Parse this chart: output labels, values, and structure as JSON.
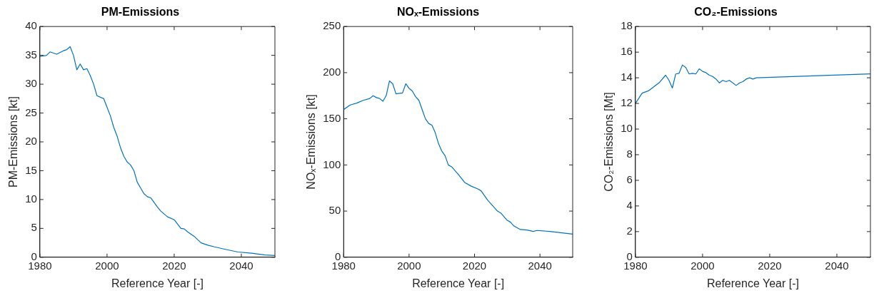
{
  "chart_data": [
    {
      "type": "line",
      "title": "PM-Emissions",
      "xlabel": "Reference Year [-]",
      "ylabel": "PM-Emissions [kt]",
      "xlim": [
        1980,
        2050
      ],
      "xticks": [
        1980,
        2000,
        2020,
        2040
      ],
      "ylim": [
        0,
        40
      ],
      "yticks": [
        0,
        5,
        10,
        15,
        20,
        25,
        30,
        35,
        40
      ],
      "grid": false,
      "legend": false,
      "x": [
        1980,
        1982,
        1983,
        1985,
        1987,
        1988,
        1989,
        1990,
        1991,
        1992,
        1993,
        1994,
        1995,
        1996,
        1997,
        1999,
        2000,
        2001,
        2002,
        2003,
        2004,
        2005,
        2006,
        2007,
        2008,
        2009,
        2010,
        2011,
        2012,
        2013,
        2014,
        2015,
        2016,
        2018,
        2020,
        2022,
        2023,
        2024,
        2026,
        2028,
        2030,
        2032,
        2035,
        2039,
        2043,
        2047,
        2050
      ],
      "series": [
        {
          "color": "#0072bd",
          "values": [
            34.8,
            35.0,
            35.6,
            35.2,
            35.8,
            36.0,
            36.5,
            35.0,
            32.5,
            33.5,
            32.5,
            32.7,
            31.5,
            30,
            28,
            27.5,
            26,
            24.5,
            22.5,
            21,
            19,
            17.5,
            16.5,
            16,
            15,
            13,
            12,
            11,
            10.5,
            10.3,
            9.5,
            8.7,
            8,
            7,
            6.5,
            5,
            4.9,
            4.4,
            3.6,
            2.5,
            2.1,
            1.8,
            1.4,
            0.9,
            0.7,
            0.4,
            0.3
          ]
        }
      ]
    },
    {
      "type": "line",
      "title": "NOₓ-Emissions",
      "xlabel": "Reference Year [-]",
      "ylabel": "NOₓ-Emissions [kt]",
      "xlim": [
        1980,
        2050
      ],
      "xticks": [
        1980,
        2000,
        2020,
        2040
      ],
      "ylim": [
        0,
        250
      ],
      "yticks": [
        0,
        50,
        100,
        150,
        200,
        250
      ],
      "grid": false,
      "legend": false,
      "x": [
        1980,
        1982,
        1984,
        1986,
        1988,
        1989,
        1990,
        1991,
        1992,
        1993,
        1994,
        1995,
        1996,
        1998,
        1999,
        2000,
        2001,
        2002,
        2003,
        2004,
        2005,
        2006,
        2007,
        2008,
        2009,
        2010,
        2011,
        2012,
        2013,
        2015,
        2017,
        2019,
        2021,
        2022,
        2024,
        2026,
        2027,
        2028,
        2030,
        2031,
        2032,
        2034,
        2036,
        2038,
        2039,
        2043,
        2050
      ],
      "series": [
        {
          "color": "#0072bd",
          "values": [
            160,
            165,
            167,
            170,
            172,
            175,
            173,
            172,
            169,
            175,
            191,
            188,
            177,
            178,
            188,
            183,
            180,
            174,
            170,
            160,
            150,
            145,
            143,
            135,
            123,
            115,
            110,
            100,
            98,
            90,
            81,
            77,
            74,
            72,
            62,
            54,
            50,
            48,
            40,
            38,
            34,
            30,
            29.5,
            28,
            29,
            28,
            25
          ]
        }
      ]
    },
    {
      "type": "line",
      "title": "CO₂-Emissions",
      "xlabel": "Reference Year [-]",
      "ylabel": "CO₂-Emissions [Mt]",
      "xlim": [
        1980,
        2050
      ],
      "xticks": [
        1980,
        2000,
        2020,
        2040
      ],
      "ylim": [
        0,
        18
      ],
      "yticks": [
        0,
        2,
        4,
        6,
        8,
        10,
        12,
        14,
        16,
        18
      ],
      "grid": false,
      "legend": false,
      "x": [
        1980,
        1982,
        1984,
        1987,
        1989,
        1990,
        1991,
        1992,
        1993,
        1994,
        1995,
        1996,
        1997,
        1998,
        1999,
        2000,
        2001,
        2002,
        2003,
        2004,
        2005,
        2006,
        2007,
        2008,
        2010,
        2011,
        2012,
        2013,
        2014,
        2015,
        2016,
        2050
      ],
      "series": [
        {
          "color": "#0072bd",
          "values": [
            12.0,
            12.8,
            13.0,
            13.6,
            14.2,
            13.8,
            13.2,
            14.3,
            14.35,
            15.0,
            14.8,
            14.3,
            14.35,
            14.3,
            14.7,
            14.5,
            14.4,
            14.2,
            14.1,
            13.9,
            13.6,
            13.8,
            13.7,
            13.8,
            13.4,
            13.6,
            13.7,
            13.9,
            14.0,
            13.9,
            14.0,
            14.3
          ]
        }
      ]
    }
  ]
}
